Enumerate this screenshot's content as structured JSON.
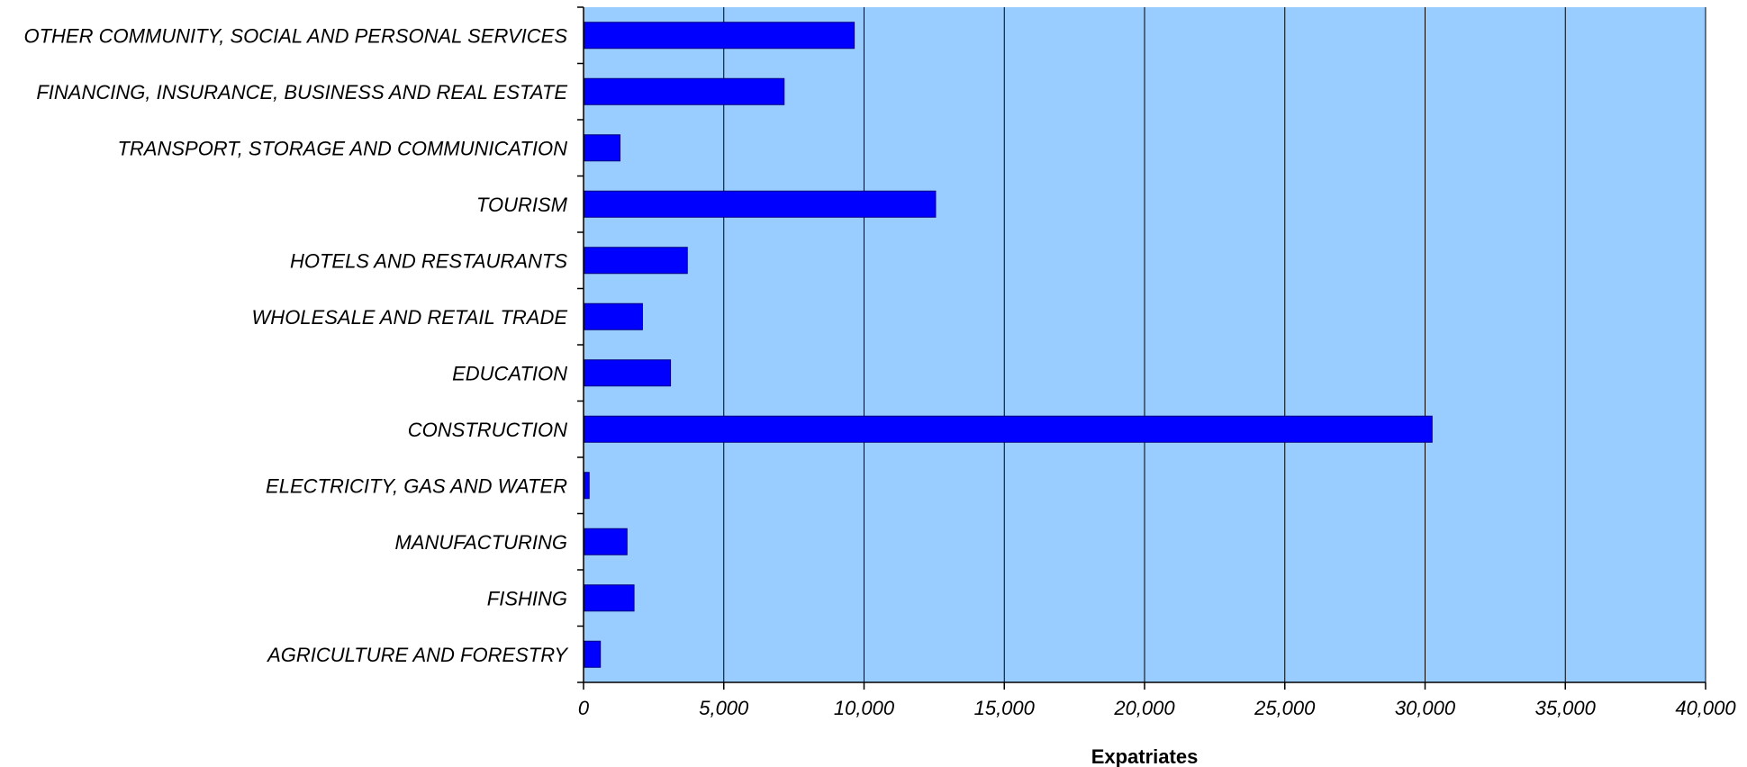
{
  "chart_data": {
    "type": "bar",
    "orientation": "horizontal",
    "categories": [
      "OTHER COMMUNITY, SOCIAL AND PERSONAL SERVICES",
      "FINANCING, INSURANCE, BUSINESS AND REAL ESTATE",
      "TRANSPORT, STORAGE AND COMMUNICATION",
      "TOURISM",
      "HOTELS AND RESTAURANTS",
      "WHOLESALE AND RETAIL TRADE",
      "EDUCATION",
      "CONSTRUCTION",
      "ELECTRICITY, GAS AND WATER",
      "MANUFACTURING",
      "FISHING",
      "AGRICULTURE AND FORESTRY"
    ],
    "values": [
      9650,
      7150,
      1300,
      12550,
      3700,
      2100,
      3100,
      30250,
      200,
      1550,
      1800,
      600
    ],
    "xlabel": "Expatriates",
    "xlim": [
      0,
      40000
    ],
    "xticks": [
      0,
      5000,
      10000,
      15000,
      20000,
      25000,
      30000,
      35000,
      40000
    ],
    "xtick_labels": [
      "0",
      "5,000",
      "10,000",
      "15,000",
      "20,000",
      "25,000",
      "30,000",
      "35,000",
      "40,000"
    ],
    "grid": "vertical",
    "colors": {
      "plot_background": "#99ccff",
      "bar": "#0000ff",
      "bar_edge": "#000080",
      "gridline": "#000000"
    }
  }
}
